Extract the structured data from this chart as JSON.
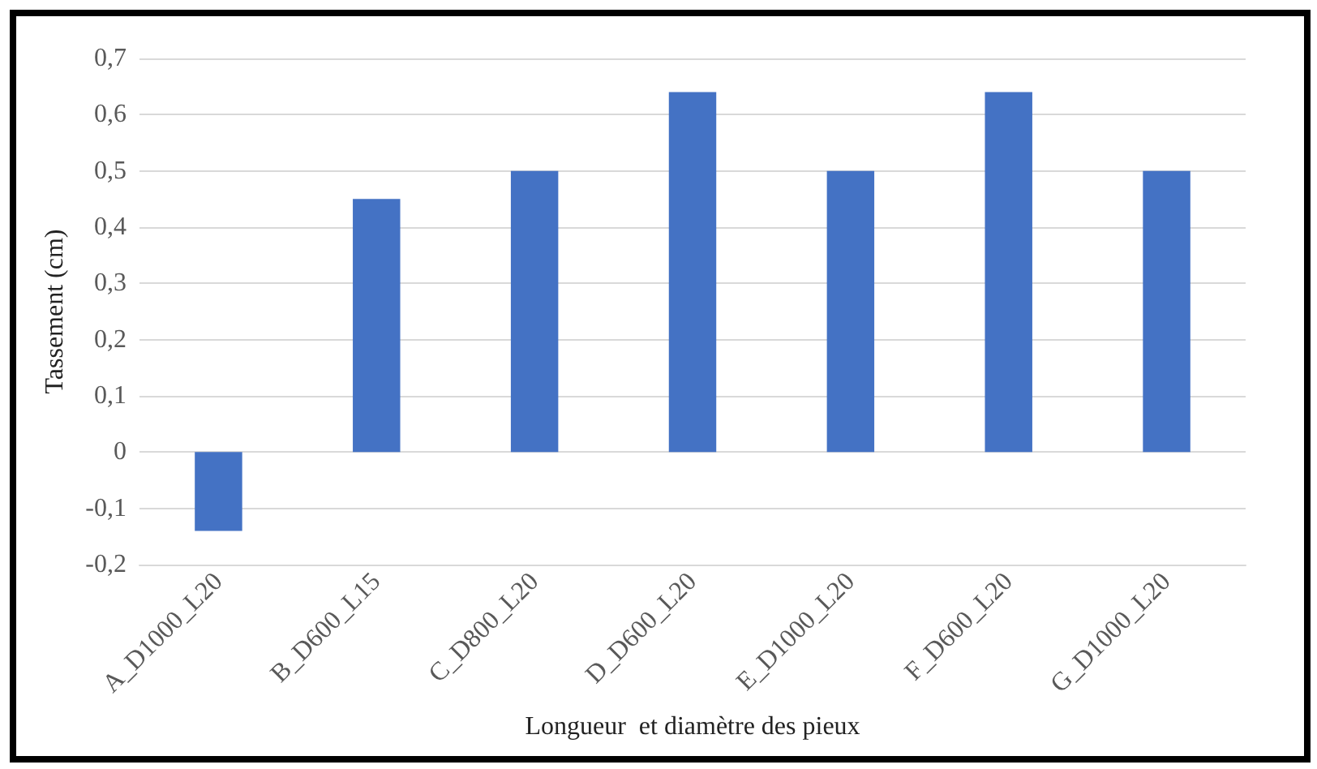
{
  "chart_data": {
    "type": "bar",
    "xlabel": "Longueur  et diamètre des pieux",
    "ylabel": "Tassement (cm)",
    "categories": [
      "A_D1000_L20",
      "B_D600_L15",
      "C_D800_L20",
      "D_D600_L20",
      "E_D1000_L20",
      "F_D600_L20",
      "G_D1000_L20"
    ],
    "values": [
      -0.14,
      0.45,
      0.5,
      0.64,
      0.5,
      0.64,
      0.5
    ],
    "color": "#4472c4",
    "ylim": [
      -0.2,
      0.7
    ],
    "yticks": [
      {
        "value": -0.2,
        "label": "-0,2"
      },
      {
        "value": -0.1,
        "label": "-0,1"
      },
      {
        "value": 0,
        "label": "0"
      },
      {
        "value": 0.1,
        "label": "0,1"
      },
      {
        "value": 0.2,
        "label": "0,2"
      },
      {
        "value": 0.3,
        "label": "0,3"
      },
      {
        "value": 0.4,
        "label": "0,4"
      },
      {
        "value": 0.5,
        "label": "0,5"
      },
      {
        "value": 0.6,
        "label": "0,6"
      },
      {
        "value": 0.7,
        "label": "0,7"
      }
    ],
    "grid": "y"
  }
}
